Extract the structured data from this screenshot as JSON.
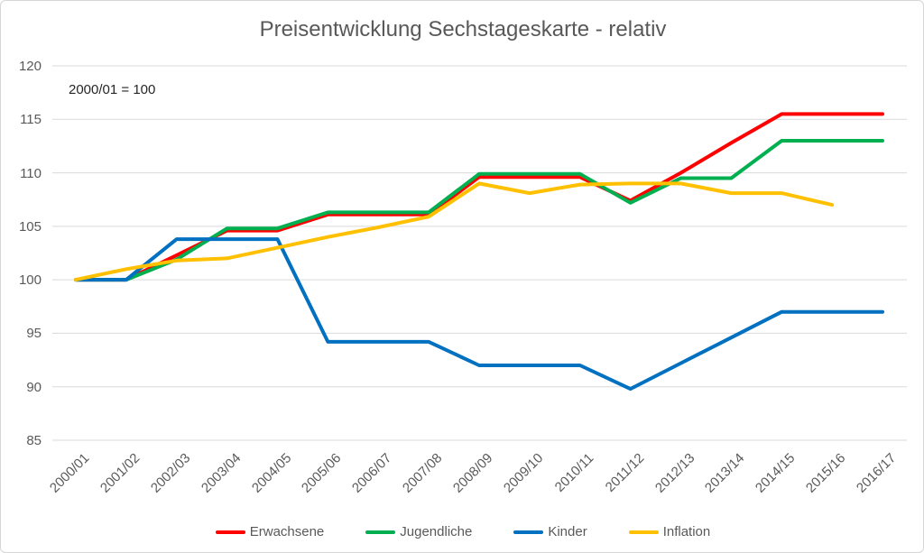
{
  "title": "Preisentwicklung Sechstageskarte - relativ",
  "annotation": "2000/01 = 100",
  "colors": {
    "erwachsene": "#FF0000",
    "jugendliche": "#00B050",
    "kinder": "#0070C0",
    "inflation": "#FFC000",
    "grid": "#D9D9D9",
    "axis_text": "#595959",
    "title_text": "#595959",
    "annotation_text": "#262626"
  },
  "chart_data": {
    "type": "line",
    "title": "Preisentwicklung Sechstageskarte - relativ",
    "annotation": "2000/01 = 100",
    "categories": [
      "2000/01",
      "2001/02",
      "2002/03",
      "2003/04",
      "2004/05",
      "2005/06",
      "2006/07",
      "2007/08",
      "2008/09",
      "2009/10",
      "2010/11",
      "2011/12",
      "2012/13",
      "2013/14",
      "2014/15",
      "2015/16",
      "2016/17"
    ],
    "series": [
      {
        "name": "Erwachsene",
        "color": "#FF0000",
        "values": [
          100,
          100,
          102.3,
          104.6,
          104.6,
          106.1,
          106.1,
          106.1,
          109.6,
          109.6,
          109.6,
          107.4,
          110.0,
          112.8,
          115.5,
          115.5,
          115.5
        ]
      },
      {
        "name": "Jugendliche",
        "color": "#00B050",
        "values": [
          100,
          100,
          101.9,
          104.8,
          104.8,
          106.3,
          106.3,
          106.3,
          109.9,
          109.9,
          109.9,
          107.2,
          109.5,
          109.5,
          113.0,
          113.0,
          113.0
        ]
      },
      {
        "name": "Kinder",
        "color": "#0070C0",
        "values": [
          100,
          100,
          103.8,
          103.8,
          103.8,
          94.2,
          94.2,
          94.2,
          92.0,
          92.0,
          92.0,
          89.8,
          92.2,
          94.6,
          97.0,
          97.0,
          97.0
        ]
      },
      {
        "name": "Inflation",
        "color": "#FFC000",
        "values": [
          100,
          101.0,
          101.8,
          102.0,
          103.0,
          104.0,
          104.9,
          105.9,
          109.0,
          108.1,
          108.9,
          109.0,
          109.0,
          108.1,
          108.1,
          107.0,
          null
        ]
      }
    ],
    "xlabel": "",
    "ylabel": "",
    "ylim": [
      85,
      120
    ],
    "yticks": [
      85,
      90,
      95,
      100,
      105,
      110,
      115,
      120
    ],
    "grid": true,
    "legend_position": "bottom"
  }
}
